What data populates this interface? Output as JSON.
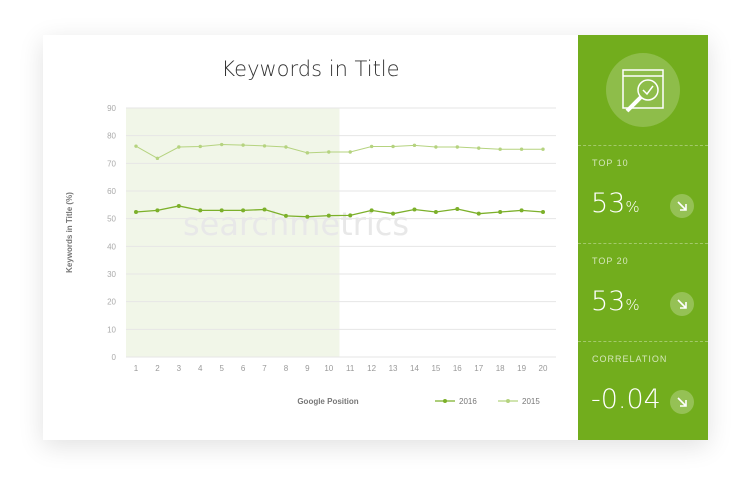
{
  "chart_data": {
    "type": "line",
    "title": "Keywords in Title",
    "xlabel": "Google Position",
    "ylabel": "Keywords in Title (%)",
    "categories": [
      1,
      2,
      3,
      4,
      5,
      6,
      7,
      8,
      9,
      10,
      11,
      12,
      13,
      14,
      15,
      16,
      17,
      18,
      19,
      20
    ],
    "ylim": [
      0,
      90
    ],
    "yticks": [
      0,
      10,
      20,
      30,
      40,
      50,
      60,
      70,
      80,
      90
    ],
    "grid": true,
    "highlight_range": [
      1,
      10
    ],
    "legend_placement": "bottom-right",
    "series": [
      {
        "name": "2016",
        "color": "#7cb02a",
        "values": [
          52.4,
          53.0,
          54.6,
          53.0,
          53.0,
          53.0,
          53.3,
          51.0,
          50.7,
          51.1,
          51.2,
          53.0,
          51.8,
          53.3,
          52.4,
          53.5,
          51.8,
          52.4,
          53.0,
          52.4
        ]
      },
      {
        "name": "2015",
        "color": "#b5d37f",
        "values": [
          76.2,
          71.8,
          75.9,
          76.1,
          76.8,
          76.6,
          76.3,
          75.9,
          73.8,
          74.1,
          74.1,
          76.1,
          76.1,
          76.5,
          75.9,
          75.9,
          75.5,
          75.1,
          75.1,
          75.1
        ]
      }
    ]
  },
  "watermark": "searchmetrics",
  "sidebar": {
    "icon": "magnifier-check-icon",
    "stats": [
      {
        "label": "TOP 10",
        "value": "53",
        "unit": "%",
        "trend": "arrow-down-right-icon"
      },
      {
        "label": "TOP 20",
        "value": "53",
        "unit": "%",
        "trend": "arrow-down-right-icon"
      },
      {
        "label": "CORRELATION",
        "value": "-0.04",
        "unit": "",
        "trend": "arrow-down-right-icon"
      }
    ],
    "color": "#72ad1d"
  }
}
